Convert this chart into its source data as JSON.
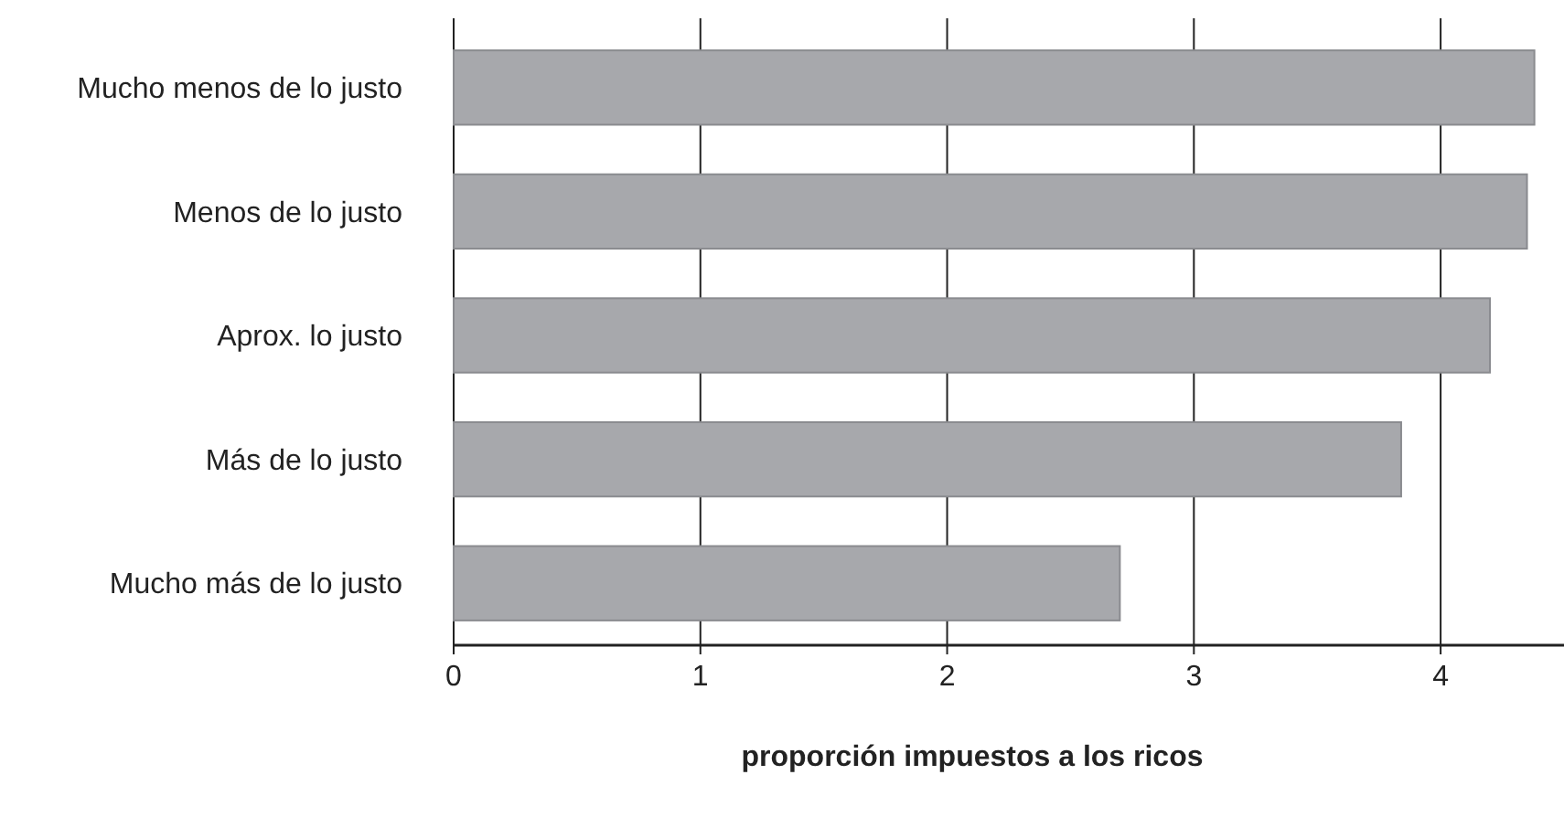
{
  "chart_data": {
    "type": "bar",
    "orientation": "horizontal",
    "xlabel": "proporción impuestos a los ricos",
    "categories": [
      "Mucho menos de lo justo",
      "Menos de lo justo",
      "Aprox. lo justo",
      "Más de lo justo",
      "Mucho más de lo justo"
    ],
    "values": [
      4.38,
      4.35,
      4.2,
      3.84,
      2.7
    ],
    "color": "#a7a8ac",
    "xlim": [
      0,
      4.5
    ],
    "xticks": [
      0,
      1,
      2,
      3,
      4
    ],
    "grid": "x"
  }
}
